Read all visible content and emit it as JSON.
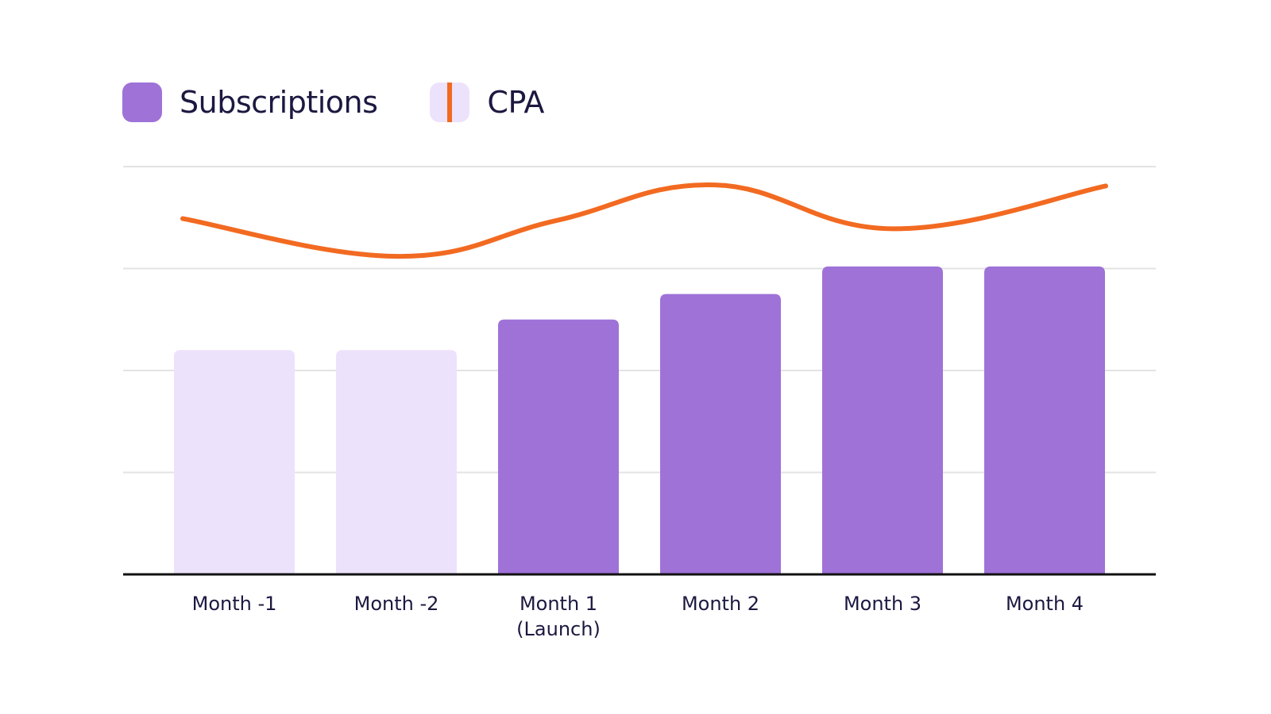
{
  "colors": {
    "bar_active": "#9f72d8",
    "bar_faded": "#ede2fc",
    "line": "#f26a21",
    "grid": "#e3e3e3",
    "axis": "#111111",
    "text": "#1c1840"
  },
  "legend": {
    "items": [
      {
        "label": "Subscriptions",
        "icon": "filled-square"
      },
      {
        "label": "CPA",
        "icon": "line-square"
      }
    ]
  },
  "chart_data": {
    "type": "bar",
    "categories": [
      [
        "Month -1"
      ],
      [
        "Month -2"
      ],
      [
        "Month 1",
        "(Launch)"
      ],
      [
        "Month 2"
      ],
      [
        "Month 3"
      ],
      [
        "Month 4"
      ]
    ],
    "series": [
      {
        "name": "Subscriptions",
        "type": "bar",
        "values": [
          2.2,
          2.2,
          2.5,
          2.75,
          3.02,
          3.02
        ],
        "faded": [
          true,
          true,
          false,
          false,
          false,
          false
        ]
      },
      {
        "name": "CPA",
        "type": "line",
        "values": [
          3.49,
          3.12,
          3.47,
          3.82,
          3.39,
          3.81
        ]
      }
    ],
    "ylim": [
      0,
      4
    ],
    "grid": true,
    "legend_position": "top-left",
    "title": "",
    "xlabel": "",
    "ylabel": ""
  }
}
